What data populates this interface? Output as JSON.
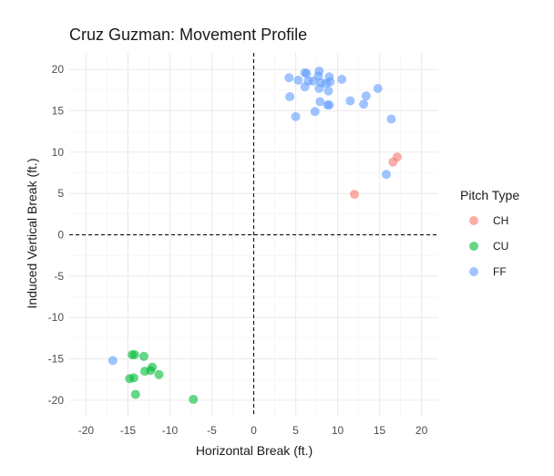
{
  "chart_data": {
    "type": "scatter",
    "title": "Cruz Guzman: Movement Profile",
    "xlabel": "Horizontal Break (ft.)",
    "ylabel": "Induced Vertical Break (ft.)",
    "xlim": [
      -22,
      22
    ],
    "ylim": [
      -22,
      22
    ],
    "x_ticks": [
      -20,
      -15,
      -10,
      -5,
      0,
      5,
      10,
      15,
      20
    ],
    "y_ticks": [
      -20,
      -15,
      -10,
      -5,
      0,
      5,
      10,
      15,
      20
    ],
    "grid": true,
    "reference_lines": {
      "x": 0,
      "y": 0,
      "style": "dashed"
    },
    "legend": {
      "title": "Pitch Type",
      "position": "right"
    },
    "series": [
      {
        "name": "CH",
        "color": "#F8766D",
        "points": [
          [
            12.0,
            4.9
          ],
          [
            16.6,
            8.8
          ],
          [
            17.1,
            9.4
          ]
        ]
      },
      {
        "name": "CU",
        "color": "#00BA38",
        "points": [
          [
            -14.5,
            -14.5
          ],
          [
            -14.2,
            -14.5
          ],
          [
            -13.1,
            -14.7
          ],
          [
            -14.8,
            -17.4
          ],
          [
            -14.3,
            -17.3
          ],
          [
            -13.0,
            -16.5
          ],
          [
            -12.3,
            -16.4
          ],
          [
            -12.1,
            -16.0
          ],
          [
            -11.3,
            -16.9
          ],
          [
            -14.1,
            -19.3
          ],
          [
            -7.2,
            -19.9
          ]
        ]
      },
      {
        "name": "FF",
        "color": "#619CFF",
        "points": [
          [
            4.2,
            19.0
          ],
          [
            5.3,
            18.7
          ],
          [
            6.1,
            19.6
          ],
          [
            6.3,
            19.5
          ],
          [
            7.8,
            19.8
          ],
          [
            7.7,
            19.2
          ],
          [
            9.0,
            19.1
          ],
          [
            7.1,
            18.6
          ],
          [
            8.0,
            18.4
          ],
          [
            8.6,
            18.3
          ],
          [
            9.1,
            18.5
          ],
          [
            10.5,
            18.8
          ],
          [
            6.5,
            18.6
          ],
          [
            7.8,
            17.7
          ],
          [
            8.9,
            17.4
          ],
          [
            6.1,
            17.9
          ],
          [
            4.3,
            16.7
          ],
          [
            14.8,
            17.7
          ],
          [
            13.4,
            16.8
          ],
          [
            11.5,
            16.2
          ],
          [
            7.9,
            16.1
          ],
          [
            8.8,
            15.7
          ],
          [
            9.0,
            15.7
          ],
          [
            13.1,
            15.8
          ],
          [
            7.3,
            14.9
          ],
          [
            5.0,
            14.3
          ],
          [
            16.4,
            14.0
          ],
          [
            15.8,
            7.3
          ],
          [
            -16.8,
            -15.2
          ]
        ]
      }
    ]
  }
}
